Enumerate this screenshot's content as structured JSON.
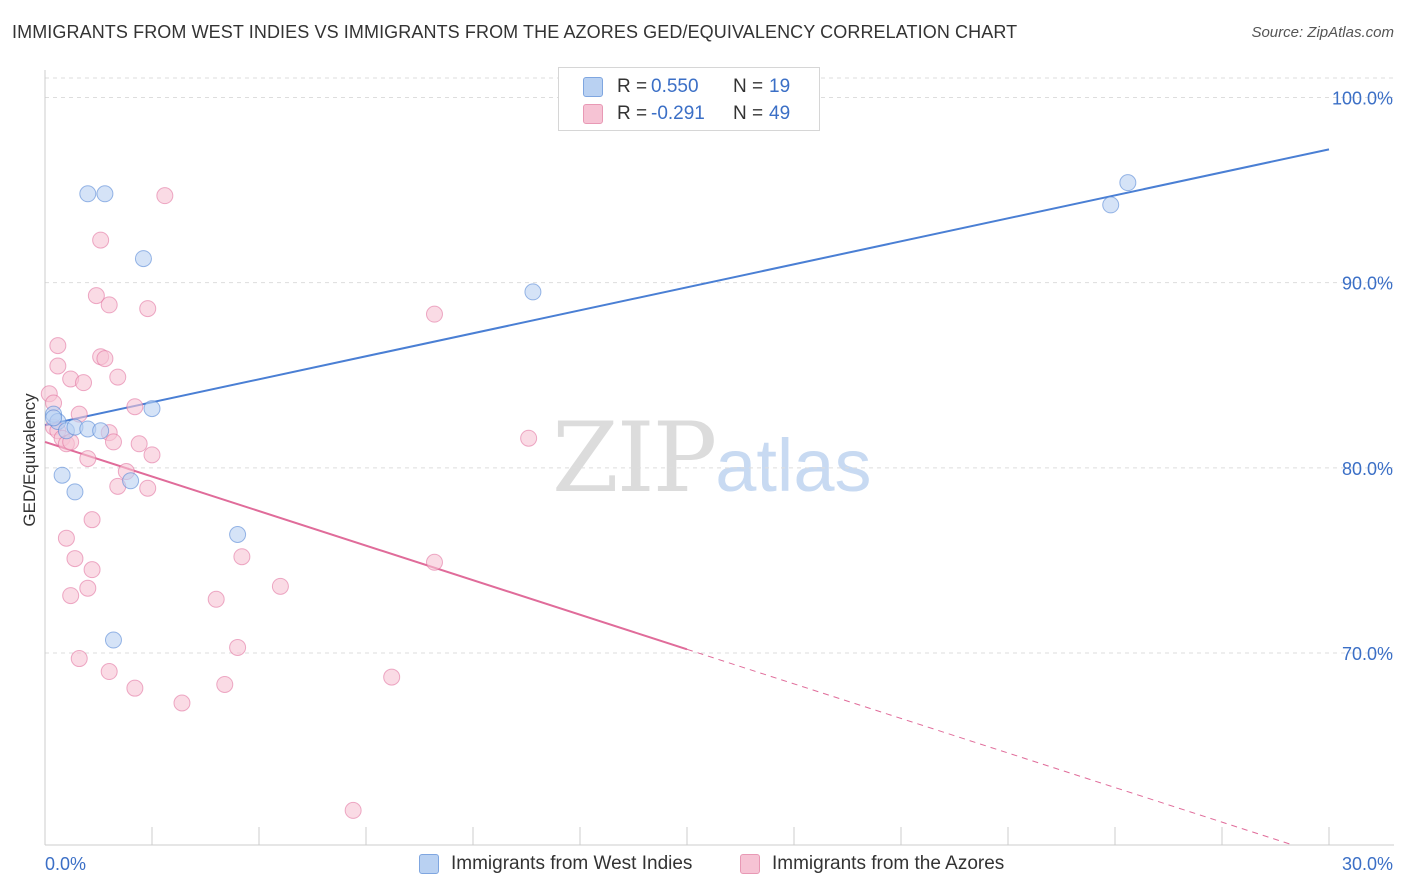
{
  "title": "IMMIGRANTS FROM WEST INDIES VS IMMIGRANTS FROM THE AZORES GED/EQUIVALENCY CORRELATION CHART",
  "source": "Source: ZipAtlas.com",
  "watermark": {
    "zip": "ZIP",
    "atlas": "atlas"
  },
  "colors": {
    "blue": "#4a7fd4",
    "blue_fill": "#b9d1f2",
    "pink": "#e06c9a",
    "pink_fill": "#f6c3d4",
    "grid": "#dddddd",
    "tick_text": "#3b6fc6"
  },
  "legend": {
    "rows": [
      {
        "r_label": "R =",
        "r_value": "0.550",
        "n_label": "N =",
        "n_value": "19"
      },
      {
        "r_label": "R =",
        "r_value": "-0.291",
        "n_label": "N =",
        "n_value": "49"
      }
    ]
  },
  "bottom_legend": {
    "items": [
      {
        "label": "Immigrants from West Indies"
      },
      {
        "label": "Immigrants from the Azores"
      }
    ]
  },
  "chart_data": {
    "type": "scatter",
    "title": "IMMIGRANTS FROM WEST INDIES VS IMMIGRANTS FROM THE AZORES GED/EQUIVALENCY CORRELATION CHART",
    "xlabel": "",
    "ylabel": "GED/Equivalency",
    "xlim": [
      0,
      30
    ],
    "ylim": [
      60,
      101
    ],
    "x_tick_labels": [
      "0.0%",
      "30.0%"
    ],
    "y_ticks": [
      70,
      80,
      90,
      100
    ],
    "y_tick_labels": [
      "70.0%",
      "80.0%",
      "90.0%",
      "100.0%"
    ],
    "legend_position": "top-center",
    "series": [
      {
        "name": "Immigrants from West Indies",
        "color": "#4a7fd4",
        "r": 0.55,
        "n": 19,
        "trend": {
          "x0": 0,
          "y0": 82.3,
          "x1": 30,
          "y1": 97.2,
          "dashed_from": null
        },
        "points": [
          [
            0.2,
            82.9
          ],
          [
            0.3,
            82.5
          ],
          [
            0.5,
            82.0
          ],
          [
            0.7,
            82.2
          ],
          [
            0.2,
            82.7
          ],
          [
            1.0,
            82.1
          ],
          [
            1.3,
            82.0
          ],
          [
            2.5,
            83.2
          ],
          [
            0.4,
            79.6
          ],
          [
            0.7,
            78.7
          ],
          [
            2.0,
            79.3
          ],
          [
            1.0,
            94.8
          ],
          [
            1.4,
            94.8
          ],
          [
            2.3,
            91.3
          ],
          [
            11.4,
            89.5
          ],
          [
            4.5,
            76.4
          ],
          [
            1.6,
            70.7
          ],
          [
            24.9,
            94.2
          ],
          [
            25.3,
            95.4
          ]
        ]
      },
      {
        "name": "Immigrants from the Azores",
        "color": "#e06c9a",
        "r": -0.291,
        "n": 49,
        "trend": {
          "x0": 0,
          "y0": 81.4,
          "x1": 30,
          "y1": 59.0,
          "dashed_from": 15.0
        },
        "points": [
          [
            0.1,
            84.0
          ],
          [
            0.2,
            83.5
          ],
          [
            0.2,
            82.2
          ],
          [
            0.3,
            82.0
          ],
          [
            0.4,
            81.6
          ],
          [
            0.5,
            81.3
          ],
          [
            0.6,
            81.4
          ],
          [
            0.3,
            86.6
          ],
          [
            0.3,
            85.5
          ],
          [
            0.6,
            84.8
          ],
          [
            0.9,
            84.6
          ],
          [
            1.3,
            86.0
          ],
          [
            1.4,
            85.9
          ],
          [
            1.7,
            84.9
          ],
          [
            0.8,
            82.9
          ],
          [
            1.5,
            81.9
          ],
          [
            1.6,
            81.4
          ],
          [
            2.1,
            83.3
          ],
          [
            2.2,
            81.3
          ],
          [
            1.0,
            80.5
          ],
          [
            2.5,
            80.7
          ],
          [
            1.9,
            79.8
          ],
          [
            1.7,
            79.0
          ],
          [
            2.4,
            78.9
          ],
          [
            1.1,
            77.2
          ],
          [
            0.5,
            76.2
          ],
          [
            0.7,
            75.1
          ],
          [
            1.1,
            74.5
          ],
          [
            1.0,
            73.5
          ],
          [
            0.6,
            73.1
          ],
          [
            1.3,
            92.3
          ],
          [
            1.2,
            89.3
          ],
          [
            1.5,
            88.8
          ],
          [
            2.4,
            88.6
          ],
          [
            2.8,
            94.7
          ],
          [
            4.6,
            75.2
          ],
          [
            5.5,
            73.6
          ],
          [
            4.0,
            72.9
          ],
          [
            4.5,
            70.3
          ],
          [
            0.8,
            69.7
          ],
          [
            1.5,
            69.0
          ],
          [
            2.1,
            68.1
          ],
          [
            4.2,
            68.3
          ],
          [
            3.2,
            67.3
          ],
          [
            9.1,
            88.3
          ],
          [
            9.1,
            74.9
          ],
          [
            11.3,
            81.6
          ],
          [
            8.1,
            68.7
          ],
          [
            7.2,
            61.5
          ]
        ]
      }
    ]
  }
}
